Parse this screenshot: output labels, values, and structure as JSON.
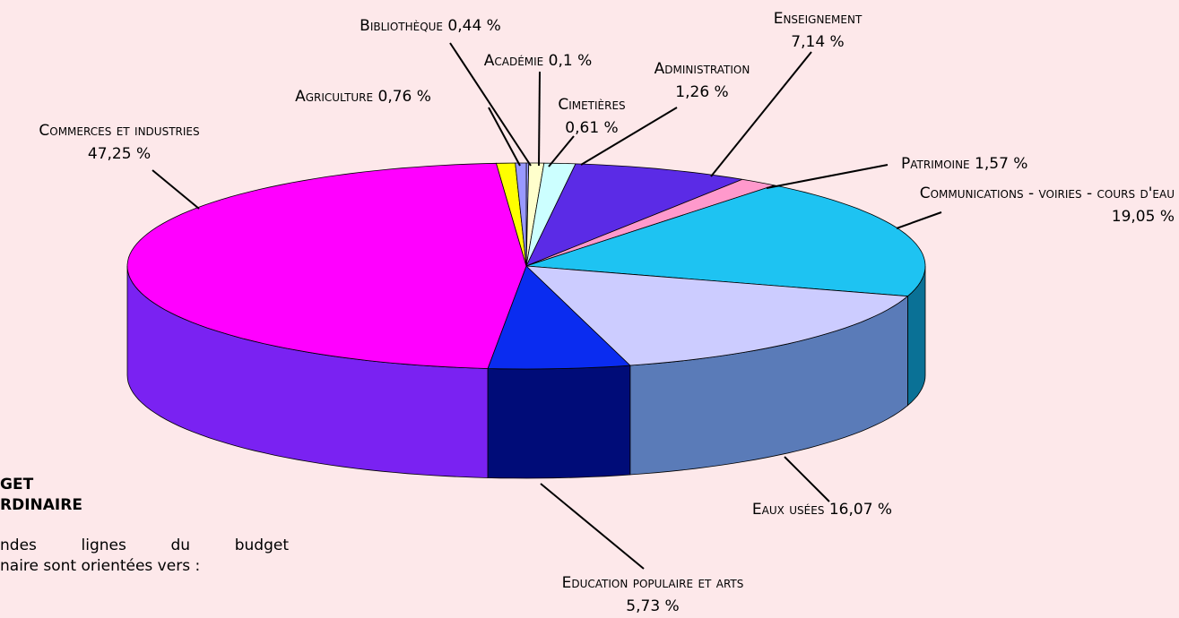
{
  "chart_data": {
    "type": "pie3d",
    "categories": [
      "Académie",
      "Cimetières",
      "Administration",
      "Enseignement",
      "Patrimoine",
      "Communications - voiries - cours d'eau",
      "Eaux usées",
      "Education populaire et arts",
      "Commerces et industries",
      "Agriculture",
      "Bibliothèque"
    ],
    "values": [
      0.1,
      0.61,
      1.26,
      7.14,
      1.57,
      19.05,
      16.07,
      5.73,
      47.25,
      0.76,
      0.44
    ],
    "value_labels": [
      "0,1 %",
      "0,61 %",
      "1,26 %",
      "7,14 %",
      "1,57 %",
      "19,05 %",
      "16,07 %",
      "5,73 %",
      "47,25 %",
      "0,76 %",
      "0,44 %"
    ],
    "colors": [
      "#9999ff",
      "#ffffcc",
      "#ccffff",
      "#5b2be6",
      "#ff99cc",
      "#1ec3f2",
      "#ccccff",
      "#0a2cf0",
      "#ff00ff",
      "#ffff00",
      "#9999ff"
    ],
    "side_colors": [
      "#6666cc",
      "#cccc99",
      "#99cccc",
      "#3d1aa0",
      "#cc6699",
      "#0a7196",
      "#5a7bb8",
      "#000c78",
      "#7a22f2",
      "#cccc00",
      "#6666cc"
    ]
  },
  "side_text": {
    "heading": [
      "GET",
      "RDINAIRE"
    ],
    "paragraph": [
      "ndes lignes du budget",
      "naire sont orientées vers :"
    ]
  }
}
